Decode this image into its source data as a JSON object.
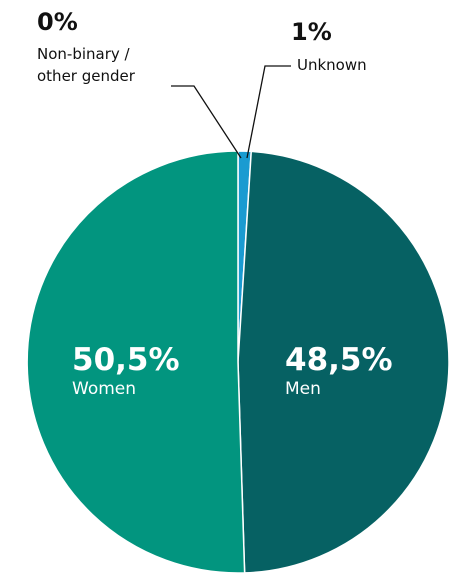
{
  "chart_data": {
    "type": "pie",
    "slices": [
      {
        "label": "Unknown",
        "value": 1,
        "value_label": "1%",
        "color": "#1a9bd1"
      },
      {
        "label": "Men",
        "value": 48.5,
        "value_label": "48,5%",
        "color": "#066163"
      },
      {
        "label": "Women",
        "value": 50.5,
        "value_label": "50,5%",
        "color": "#02957f"
      },
      {
        "label": "Non-binary / other gender",
        "label_lines": [
          "Non-binary /",
          "other gender"
        ],
        "value": 0,
        "value_label": "0%",
        "color": "#2b6f73"
      }
    ]
  }
}
